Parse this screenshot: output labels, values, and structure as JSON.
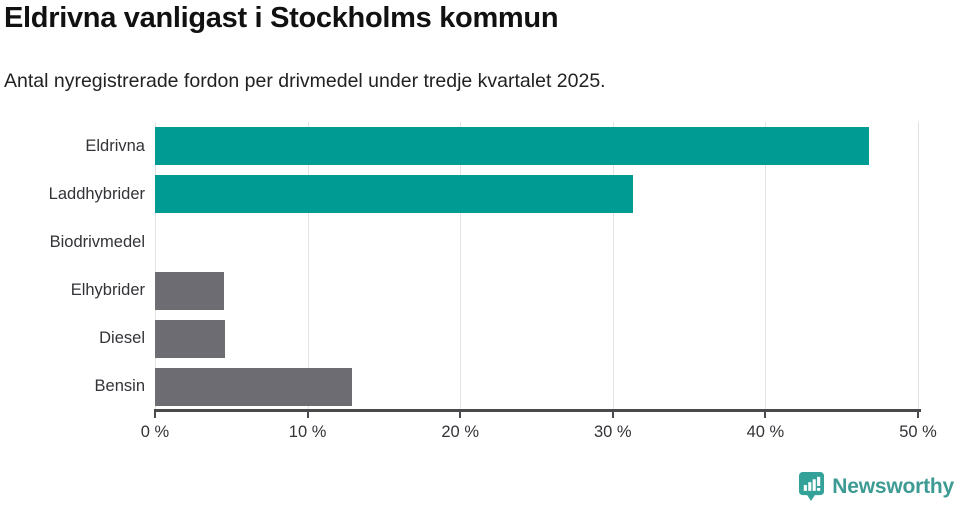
{
  "chart_data": {
    "type": "bar",
    "orientation": "horizontal",
    "title": "Eldrivna vanligast i Stockholms kommun",
    "subtitle": "Antal nyregistrerade fordon per drivmedel under tredje kvartalet 2025.",
    "categories": [
      "Eldrivna",
      "Laddhybrider",
      "Biodrivmedel",
      "Elhybrider",
      "Diesel",
      "Bensin"
    ],
    "values": [
      46.8,
      31.3,
      0,
      4.5,
      4.6,
      12.9
    ],
    "unit": "%",
    "xlim": [
      0,
      50
    ],
    "xticks": [
      {
        "value": 0,
        "label": "0 %"
      },
      {
        "value": 10,
        "label": "10 %"
      },
      {
        "value": 20,
        "label": "20 %"
      },
      {
        "value": 30,
        "label": "30 %"
      },
      {
        "value": 40,
        "label": "40 %"
      },
      {
        "value": 50,
        "label": "50 %"
      }
    ],
    "bar_colors": [
      "#009c94",
      "#009c94",
      "#6c6c72",
      "#6c6c72",
      "#6c6c72",
      "#6c6c72"
    ],
    "grid": true,
    "grid_color": "#e3e3e3",
    "axis_color": "#4a4a4c",
    "legend": "none"
  },
  "colors": {
    "accent_teal": "#009c94",
    "bar_gray": "#6c6c72",
    "logo_teal": "#3e9b94"
  },
  "footer": {
    "brand": "Newsworthy"
  }
}
